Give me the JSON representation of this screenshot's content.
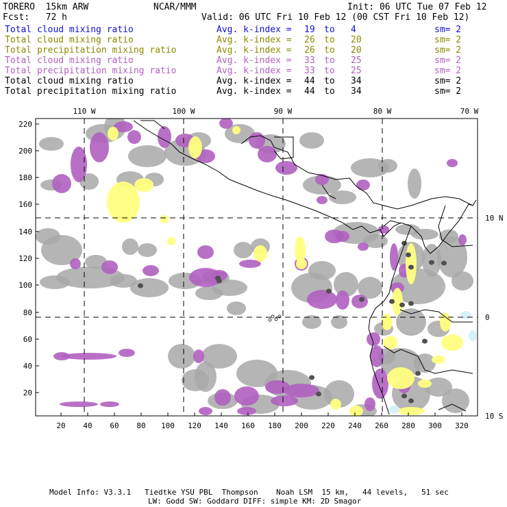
{
  "header": {
    "model": "TORERO  15km ARW",
    "org": "NCAR/MMM",
    "init": "Init: 06 UTC Tue 07 Feb 12",
    "fcst": "Fcst:   72 h",
    "valid": "Valid: 06 UTC Fri 10 Feb 12 (00 CST Fri 10 Feb 12)"
  },
  "legend": [
    {
      "field": "Total cloud mixing ratio",
      "kindex": "Avg. k-index =",
      "from": "19",
      "to_word": "to",
      "to": "4",
      "sm": "sm= 2",
      "color": "#1010d0",
      "color2": "#1010d0"
    },
    {
      "field": "Total cloud mixing ratio",
      "kindex": "Avg. k-index =",
      "from": "26",
      "to_word": "to",
      "to": "20",
      "sm": "sm= 2",
      "color": "#8a8a00",
      "color2": "#8a8a00"
    },
    {
      "field": "Total precipitation mixing ratio",
      "kindex": "Avg. k-index =",
      "from": "26",
      "to_word": "to",
      "to": "20",
      "sm": "sm= 2",
      "color": "#8a8a00",
      "color2": "#8a8a00"
    },
    {
      "field": "Total cloud mixing ratio",
      "kindex": "Avg. k-index =",
      "from": "33",
      "to_word": "to",
      "to": "25",
      "sm": "sm= 2",
      "color": "#b060c0",
      "color2": "#b060c0"
    },
    {
      "field": "Total precipitation mixing ratio",
      "kindex": "Avg. k-index =",
      "from": "33",
      "to_word": "to",
      "to": "25",
      "sm": "sm= 2",
      "color": "#b060c0",
      "color2": "#b060c0"
    },
    {
      "field": "Total cloud mixing ratio",
      "kindex": "Avg. k-index =",
      "from": "44",
      "to_word": "to",
      "to": "34",
      "sm": "sm= 2",
      "color": "#000000",
      "color2": "#000000"
    },
    {
      "field": "Total precipitation mixing ratio",
      "kindex": "Avg. k-index =",
      "from": "44",
      "to_word": "to",
      "to": "34",
      "sm": "sm= 2",
      "color": "#000000",
      "color2": "#000000"
    }
  ],
  "map": {
    "lon_labels": [
      "110 W",
      "100 W",
      "90 W",
      "80 W",
      "70 W"
    ],
    "lat_labels": [
      "10 N",
      "0",
      "10 S"
    ],
    "y_ticks": [
      "220",
      "200",
      "180",
      "160",
      "140",
      "120",
      "100",
      "80",
      "60",
      "40",
      "20"
    ],
    "x_ticks": [
      "20",
      "40",
      "60",
      "80",
      "100",
      "120",
      "140",
      "160",
      "180",
      "200",
      "220",
      "240",
      "260",
      "280",
      "300",
      "320"
    ],
    "colors": {
      "gray": "#a8a8a8",
      "dark": "#505050",
      "purple": "#b060c0",
      "yellow": "#ffff80",
      "cyan": "#d8f0f8"
    }
  },
  "footer": {
    "line1": "Model Info: V3.3.1   Tiedtke YSU PBL  Thompson    Noah LSM  15 km,   44 levels,   51 sec",
    "line2": "LW: Godd SW: Goddard DIFF: simple KM: 2D Smagor"
  }
}
